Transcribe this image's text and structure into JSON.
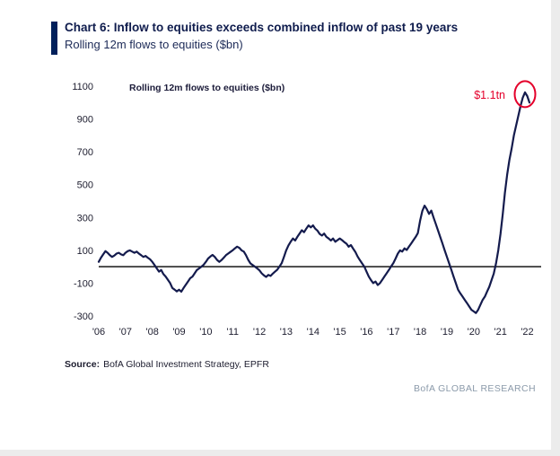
{
  "page": {
    "title": "Chart 6: Inflow to equities exceeds combined inflow of past 19 years",
    "subtitle": "Rolling 12m flows to equities ($bn)",
    "source_label": "Source:",
    "source_text": "BofA Global Investment Strategy, EPFR",
    "footer_brand": "BofA GLOBAL RESEARCH",
    "accent_color": "#00205b",
    "line_color": "#141b4d",
    "annotation_color": "#e4002b",
    "brand_color": "#8b9aaa"
  },
  "chart_data": {
    "type": "line",
    "title": "Rolling 12m flows to equities ($bn)",
    "ylabel": "",
    "xlabel": "",
    "ylim": [
      -300,
      1100
    ],
    "y_ticks": [
      1100,
      900,
      700,
      500,
      300,
      100,
      -100,
      -300
    ],
    "x_tick_labels": [
      "'06",
      "'07",
      "'08",
      "'09",
      "'10",
      "'11",
      "'12",
      "'13",
      "'14",
      "'15",
      "'16",
      "'17",
      "'18",
      "'19",
      "'20",
      "'21",
      "'22"
    ],
    "points_per_year": 12,
    "zero_line": true,
    "legend_position": "none",
    "annotation": {
      "label": "$1.1tn"
    },
    "values": [
      30,
      55,
      75,
      95,
      85,
      70,
      60,
      68,
      80,
      85,
      75,
      70,
      85,
      95,
      100,
      92,
      85,
      92,
      80,
      70,
      60,
      66,
      55,
      45,
      30,
      10,
      -10,
      -30,
      -20,
      -45,
      -60,
      -80,
      -100,
      -130,
      -140,
      -150,
      -140,
      -152,
      -130,
      -110,
      -90,
      -70,
      -60,
      -40,
      -20,
      -10,
      0,
      12,
      30,
      50,
      62,
      72,
      60,
      42,
      30,
      40,
      55,
      70,
      80,
      90,
      100,
      112,
      122,
      115,
      100,
      92,
      70,
      42,
      20,
      10,
      0,
      -10,
      -22,
      -40,
      -52,
      -62,
      -50,
      -56,
      -42,
      -30,
      -18,
      2,
      22,
      60,
      100,
      130,
      152,
      172,
      160,
      182,
      202,
      222,
      210,
      232,
      252,
      240,
      252,
      232,
      220,
      200,
      190,
      202,
      182,
      172,
      160,
      172,
      152,
      162,
      172,
      162,
      150,
      140,
      122,
      132,
      110,
      90,
      62,
      40,
      20,
      0,
      -30,
      -60,
      -82,
      -100,
      -90,
      -112,
      -100,
      -80,
      -60,
      -40,
      -20,
      2,
      22,
      50,
      80,
      100,
      92,
      112,
      102,
      122,
      142,
      162,
      182,
      205,
      280,
      340,
      372,
      350,
      322,
      342,
      300,
      262,
      222,
      182,
      142,
      100,
      60,
      20,
      -20,
      -60,
      -100,
      -140,
      -162,
      -182,
      -202,
      -222,
      -242,
      -262,
      -272,
      -282,
      -262,
      -232,
      -202,
      -182,
      -152,
      -122,
      -82,
      -42,
      20,
      100,
      200,
      320,
      450,
      560,
      650,
      720,
      800,
      860,
      920,
      980,
      1030,
      1062,
      1040,
      1000
    ]
  }
}
